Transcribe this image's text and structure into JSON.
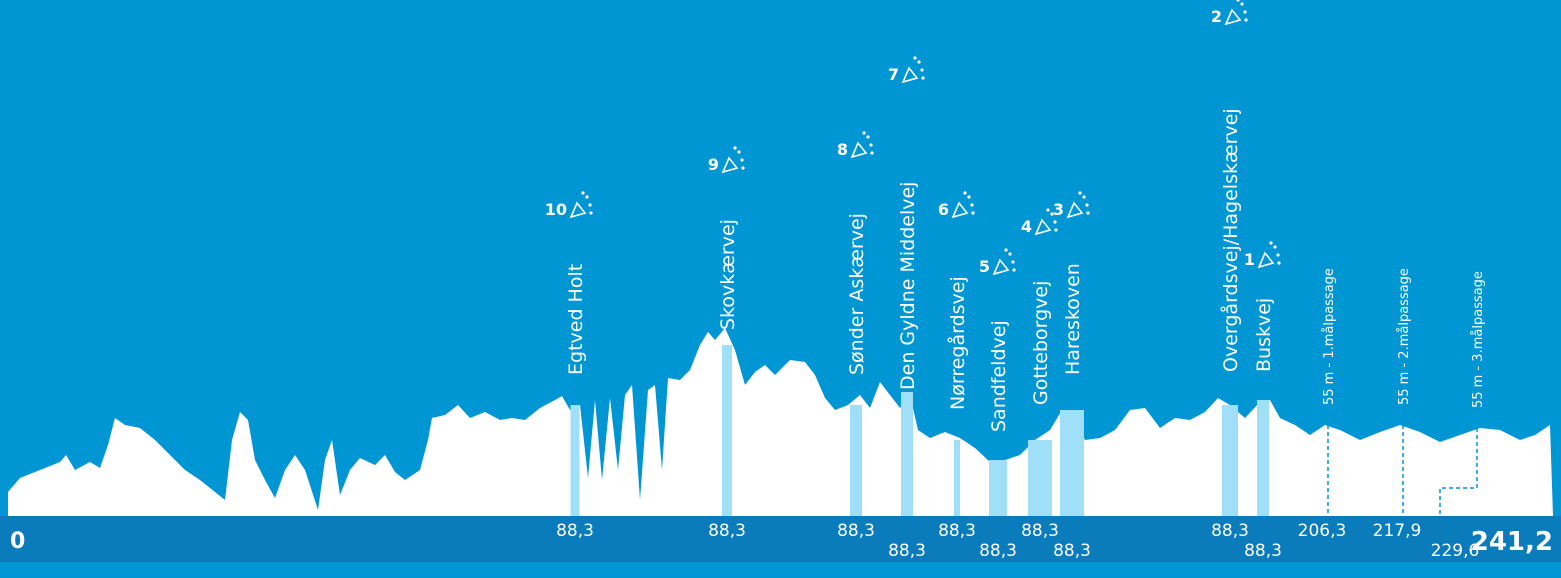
{
  "start": "0",
  "finish": "241,2",
  "climbs": [
    {
      "rank": "10",
      "name": "Egtved Holt",
      "km": "88,3"
    },
    {
      "rank": "9",
      "name": "Skovkærvej",
      "km": "88,3"
    },
    {
      "rank": "8",
      "name": "Sønder Askærvej",
      "km": "88,3"
    },
    {
      "rank": "7",
      "name": "Den Gyldne Middelvej",
      "km": "88,3"
    },
    {
      "rank": "6",
      "name": "Nørregårdsvej",
      "km": "88,3"
    },
    {
      "rank": "5",
      "name": "Sandfeldvej",
      "km": "88,3"
    },
    {
      "rank": "4",
      "name": "Gotteborgvej",
      "km": "88,3"
    },
    {
      "rank": "3",
      "name": "Hareskoven",
      "km": "88,3"
    },
    {
      "rank": "2",
      "name": "Overgårdsvej/Hagelskærvej",
      "km": "88,3"
    },
    {
      "rank": "1",
      "name": "Buskvej",
      "km": "88,3"
    }
  ],
  "passages": [
    {
      "name": "55 m - 1.målpassage",
      "km": "206,3"
    },
    {
      "name": "55 m - 2.målpassage",
      "km": "217,9"
    },
    {
      "name": "55 m - 3.målpassage",
      "km": "229,6"
    }
  ]
}
